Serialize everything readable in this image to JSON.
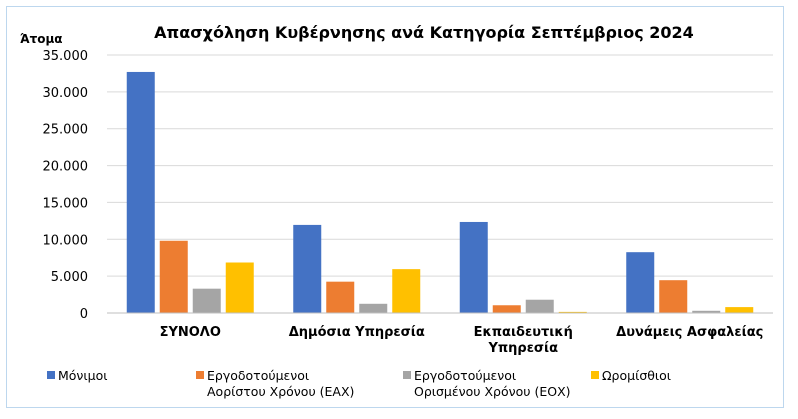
{
  "chart_data": {
    "type": "bar",
    "title": "Απασχόληση Κυβέρνησης ανά Κατηγορία Σεπτέμβριος 2024",
    "ylabel": "Άτομα",
    "ylim": [
      0,
      35000
    ],
    "yticks": [
      "0",
      "5.000",
      "10.000",
      "15.000",
      "20.000",
      "25.000",
      "30.000",
      "35.000"
    ],
    "categories": [
      [
        "ΣΥΝΟΛΟ"
      ],
      [
        "Δημόσια Υπηρεσία"
      ],
      [
        "Εκπαιδευτική",
        "Υπηρεσία"
      ],
      [
        "Δυνάμεις Ασφαλείας"
      ]
    ],
    "series": [
      {
        "name": "Μόνιμοι",
        "legend_lines": [
          "Μόνιμοι"
        ],
        "color": "#4472c4",
        "values": [
          32700,
          11950,
          12350,
          8250
        ]
      },
      {
        "name": "Εργοδοτούμενοι Αορίστου Χρόνου (ΕΑΧ)",
        "legend_lines": [
          "Εργοδοτούμενοι",
          "Αορίστου Χρόνου (ΕΑΧ)"
        ],
        "color": "#ed7d31",
        "values": [
          9800,
          4250,
          1050,
          4450
        ]
      },
      {
        "name": "Εργοδοτούμενοι Ορισμένου Χρόνου (ΕΟΧ)",
        "legend_lines": [
          "Εργοδοτούμενοι",
          "Ορισμένου Χρόνου (ΕΟΧ)"
        ],
        "color": "#a5a5a5",
        "values": [
          3300,
          1250,
          1800,
          300
        ]
      },
      {
        "name": "Ωρομίσθιοι",
        "legend_lines": [
          "Ωρομίσθιοι"
        ],
        "color": "#ffc000",
        "values": [
          6850,
          5950,
          150,
          800
        ]
      }
    ],
    "grid": true,
    "legend_position": "bottom"
  }
}
